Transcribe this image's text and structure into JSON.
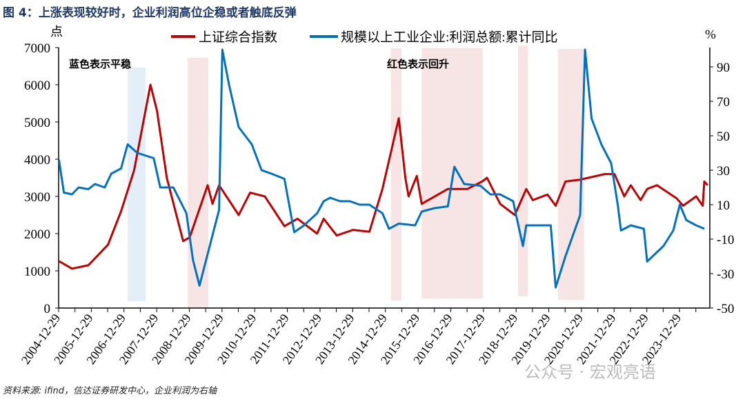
{
  "title": "图 4：上涨表现较好时，企业利润高位企稳或者触底反弹",
  "source": "资料来源: ifind，信达证券研发中心，企业利润为右轴",
  "watermark": "公众号 · 宏观亮语",
  "chart_data": {
    "type": "line",
    "left_axis": {
      "unit_label": "点",
      "ylim": [
        0,
        7000
      ],
      "ticks": [
        "0",
        "1000",
        "2000",
        "3000",
        "4000",
        "5000",
        "6000",
        "7000"
      ]
    },
    "right_axis": {
      "unit_label": "%",
      "ylim": [
        -50,
        100
      ],
      "ticks": [
        "-50",
        "-30",
        "-10",
        "10",
        "30",
        "50",
        "70",
        "90"
      ]
    },
    "x_ticks": [
      "2004-12-29",
      "2005-12-29",
      "2006-12-29",
      "2007-12-29",
      "2008-12-29",
      "2009-12-29",
      "2010-12-29",
      "2011-12-29",
      "2012-12-29",
      "2013-12-29",
      "2014-12-29",
      "2015-12-29",
      "2016-12-29",
      "2017-12-29",
      "2018-12-29",
      "2019-12-29",
      "2020-12-29",
      "2021-12-29",
      "2022-12-29",
      "2023-12-29"
    ],
    "legend_position": "top",
    "annotations": {
      "blue": "蓝色表示平稳",
      "red": "红色表示回升"
    },
    "colors": {
      "index": "#c00000",
      "profit": "#0070c0",
      "blue_band": "#e3eef8",
      "red_band": "#f7e4e4"
    },
    "blue_bands": [
      [
        2007.1,
        2007.65
      ]
    ],
    "red_bands": [
      [
        2008.94,
        2009.57
      ],
      [
        2015.16,
        2015.48
      ],
      [
        2016.1,
        2017.97
      ],
      [
        2019.05,
        2019.35
      ],
      [
        2020.27,
        2021.07
      ]
    ],
    "series": [
      {
        "name": "上证综合指数",
        "axis": "left",
        "x": [
          2005.0,
          2005.4,
          2005.9,
          2006.5,
          2006.9,
          2007.3,
          2007.8,
          2008.0,
          2008.3,
          2008.8,
          2009.0,
          2009.55,
          2009.7,
          2009.9,
          2010.5,
          2010.85,
          2011.3,
          2011.9,
          2012.3,
          2012.9,
          2013.1,
          2013.5,
          2014.0,
          2014.5,
          2014.9,
          2015.4,
          2015.6,
          2015.7,
          2015.95,
          2016.1,
          2016.9,
          2017.5,
          2017.95,
          2018.1,
          2018.5,
          2018.95,
          2019.3,
          2019.5,
          2019.95,
          2020.2,
          2020.5,
          2020.95,
          2021.2,
          2021.7,
          2022.0,
          2022.3,
          2022.5,
          2022.8,
          2023.0,
          2023.3,
          2023.9,
          2024.1,
          2024.5,
          2024.7,
          2024.75,
          2024.85
        ],
        "values": [
          1260,
          1060,
          1150,
          1700,
          2600,
          3700,
          6000,
          5300,
          3500,
          1800,
          1900,
          3300,
          2800,
          3300,
          2500,
          3100,
          3000,
          2200,
          2400,
          2000,
          2400,
          1950,
          2100,
          2050,
          3200,
          5100,
          3500,
          3000,
          3550,
          2800,
          3200,
          3200,
          3400,
          3500,
          2800,
          2500,
          3200,
          2900,
          3050,
          2750,
          3400,
          3450,
          3500,
          3600,
          3600,
          3000,
          3300,
          2900,
          3200,
          3300,
          2950,
          2750,
          3000,
          2750,
          3400,
          3300
        ]
      },
      {
        "name": "规模以上工业企业:利润总额:累计同比",
        "axis": "right",
        "x": [
          2005.0,
          2005.15,
          2005.4,
          2005.6,
          2005.9,
          2006.1,
          2006.4,
          2006.6,
          2006.9,
          2007.1,
          2007.4,
          2007.9,
          2008.1,
          2008.5,
          2008.9,
          2009.1,
          2009.3,
          2009.6,
          2009.9,
          2010.0,
          2010.2,
          2010.5,
          2010.9,
          2011.2,
          2011.5,
          2011.9,
          2012.2,
          2012.5,
          2012.9,
          2013.1,
          2013.3,
          2013.6,
          2013.9,
          2014.2,
          2014.5,
          2014.9,
          2015.1,
          2015.4,
          2015.9,
          2016.1,
          2016.5,
          2016.9,
          2017.1,
          2017.4,
          2017.9,
          2018.2,
          2018.5,
          2018.9,
          2019.0,
          2019.2,
          2019.3,
          2019.9,
          2020.05,
          2020.2,
          2020.5,
          2020.95,
          2021.1,
          2021.3,
          2021.6,
          2021.9,
          2022.1,
          2022.2,
          2022.5,
          2022.9,
          2023.0,
          2023.5,
          2023.8,
          2024.0,
          2024.2,
          2024.5,
          2024.75
        ],
        "values": [
          36,
          17,
          16,
          20,
          19,
          22,
          20,
          28,
          31,
          45,
          40,
          37,
          20,
          20,
          5,
          -22,
          -37,
          -15,
          7,
          100,
          80,
          55,
          45,
          30,
          28,
          25,
          -6,
          -2,
          5,
          12,
          14,
          12,
          12,
          10,
          10,
          5,
          -4,
          -1,
          -2,
          6,
          8,
          9,
          32,
          22,
          21,
          16,
          16,
          12,
          3,
          -14,
          -2,
          -2,
          -2,
          -38,
          -20,
          4,
          100,
          60,
          45,
          34,
          10,
          -5,
          -2,
          -4,
          -23,
          -14,
          -5,
          10,
          1,
          -2,
          -4
        ]
      }
    ]
  }
}
